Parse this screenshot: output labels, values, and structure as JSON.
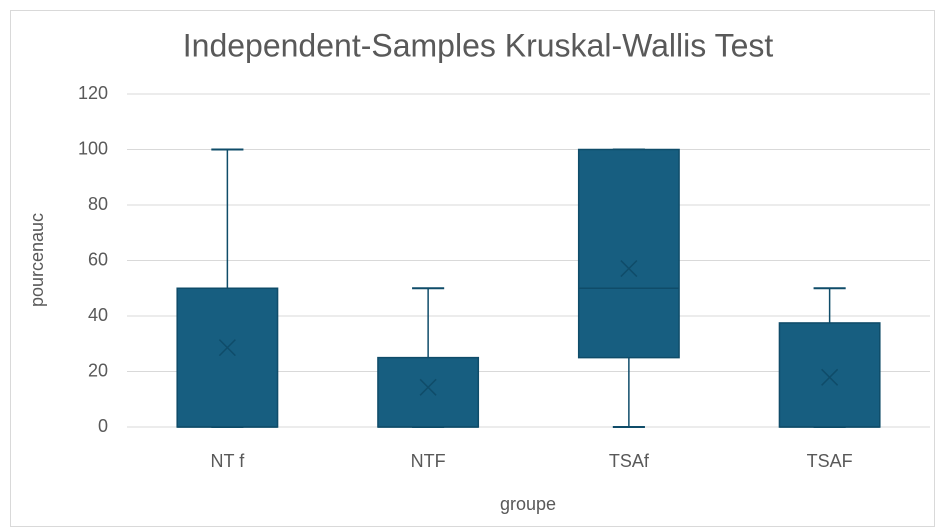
{
  "chart_data": {
    "type": "box",
    "title": "Independent-Samples Kruskal-Wallis Test",
    "x_label": "groupe",
    "y_label": "pourcenauc",
    "categories": [
      "NT f",
      "NTF",
      "TSAf",
      "TSAF"
    ],
    "boxes": [
      {
        "min": 0,
        "q1": 0,
        "median": 0,
        "q3": 50,
        "max": 100,
        "mean": 28.6
      },
      {
        "min": 0,
        "q1": 0,
        "median": 0,
        "q3": 25,
        "max": 50,
        "mean": 14.3
      },
      {
        "min": 0,
        "q1": 25,
        "median": 50,
        "q3": 100,
        "max": 100,
        "mean": 57.1
      },
      {
        "min": 0,
        "q1": 0,
        "median": 0,
        "q3": 37.5,
        "max": 50,
        "mean": 17.9
      }
    ],
    "color": "#175e80",
    "ylim": [
      0,
      120
    ],
    "yticks": [
      0,
      20,
      40,
      60,
      80,
      100,
      120
    ],
    "grid": true
  }
}
